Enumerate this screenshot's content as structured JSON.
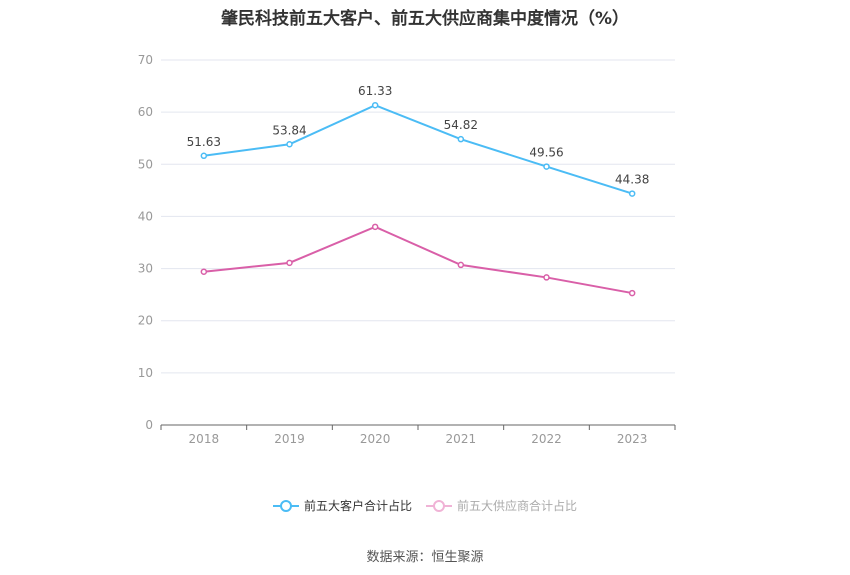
{
  "chart_data": {
    "type": "line",
    "title": "肇民科技前五大客户、前五大供应商集中度情况（%）",
    "categories": [
      "2018",
      "2019",
      "2020",
      "2021",
      "2022",
      "2023"
    ],
    "ylim": [
      0,
      70
    ],
    "yticks": [
      0,
      10,
      20,
      30,
      40,
      50,
      60,
      70
    ],
    "grid": true,
    "legend_position": "bottom",
    "series": [
      {
        "name": "前五大客户合计占比",
        "color": "#4bbcf5",
        "values": [
          51.63,
          53.84,
          61.33,
          54.82,
          49.56,
          44.38
        ],
        "labels": [
          "51.63",
          "53.84",
          "61.33",
          "54.82",
          "49.56",
          "44.38"
        ]
      },
      {
        "name": "前五大供应商合计占比",
        "color": "#d95fa8",
        "legend_color": "#f0b3d6",
        "values": [
          29.4,
          31.1,
          38.0,
          30.7,
          28.3,
          25.3
        ]
      }
    ]
  },
  "source": "数据来源：恒生聚源"
}
